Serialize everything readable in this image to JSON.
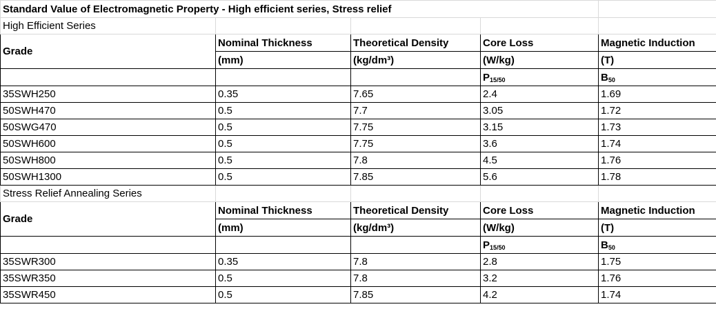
{
  "title": "Standard Value of Electromagnetic Property - High efficient series, Stress relief",
  "headers": {
    "grade": "Grade",
    "thickness": "Nominal Thickness",
    "thickness_unit": "(mm)",
    "density": "Theoretical Density",
    "density_unit": "(kg/dm³)",
    "core_loss": "Core Loss",
    "core_loss_unit": "(W/kg)",
    "core_loss_sym": "P",
    "core_loss_sub": "15/50",
    "induction": "Magnetic Induction",
    "induction_unit": "(T)",
    "induction_sym": "B",
    "induction_sub": "50"
  },
  "sections": [
    {
      "name": "High Efficient Series",
      "rows": [
        {
          "grade": "35SWH250",
          "thickness": "0.35",
          "density": "7.65",
          "core_loss": "2.4",
          "induction": "1.69"
        },
        {
          "grade": "50SWH470",
          "thickness": "0.5",
          "density": "7.7",
          "core_loss": "3.05",
          "induction": "1.72"
        },
        {
          "grade": "50SWG470",
          "thickness": "0.5",
          "density": "7.75",
          "core_loss": "3.15",
          "induction": "1.73"
        },
        {
          "grade": "50SWH600",
          "thickness": "0.5",
          "density": "7.75",
          "core_loss": "3.6",
          "induction": "1.74"
        },
        {
          "grade": "50SWH800",
          "thickness": "0.5",
          "density": "7.8",
          "core_loss": "4.5",
          "induction": "1.76"
        },
        {
          "grade": "50SWH1300",
          "thickness": "0.5",
          "density": "7.85",
          "core_loss": "5.6",
          "induction": "1.78"
        }
      ]
    },
    {
      "name": "Stress Relief Annealing Series",
      "rows": [
        {
          "grade": "35SWR300",
          "thickness": "0.35",
          "density": "7.8",
          "core_loss": "2.8",
          "induction": "1.75"
        },
        {
          "grade": "35SWR350",
          "thickness": "0.5",
          "density": "7.8",
          "core_loss": "3.2",
          "induction": "1.76"
        },
        {
          "grade": "35SWR450",
          "thickness": "0.5",
          "density": "7.85",
          "core_loss": "4.2",
          "induction": "1.74"
        }
      ]
    }
  ]
}
